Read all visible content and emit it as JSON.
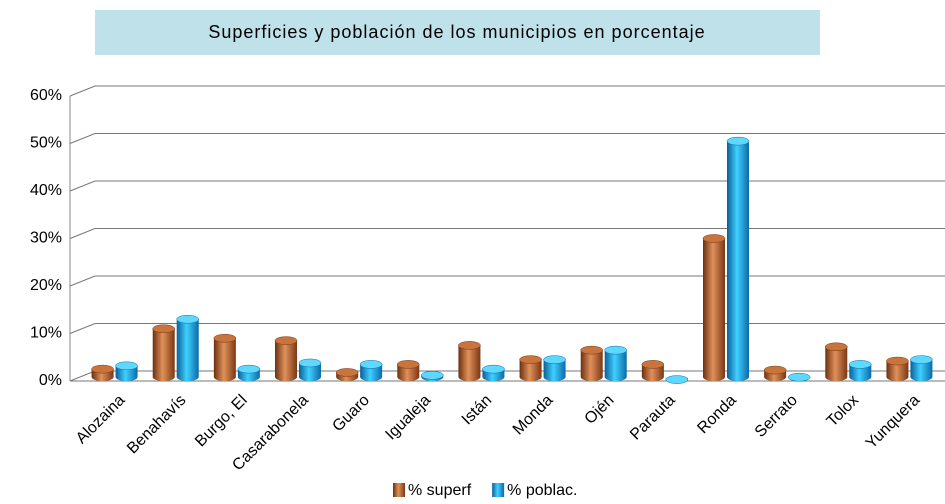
{
  "chart_data": {
    "type": "bar",
    "title": "Superficies y población de los municipios en porcentaje",
    "categories": [
      "Alozaina",
      "Benahavís",
      "Burgo, El",
      "Casarabonela",
      "Guaro",
      "Igualeja",
      "Istán",
      "Monda",
      "Ojén",
      "Parauta",
      "Ronda",
      "Serrato",
      "Tolox",
      "Yunquera"
    ],
    "series": [
      {
        "name": "% superf",
        "color": "#b5622e",
        "values": [
          2.5,
          11,
          9,
          8.5,
          1.8,
          3.5,
          7.5,
          4.5,
          6.5,
          3.5,
          30,
          2.3,
          7.2,
          4.2
        ]
      },
      {
        "name": "% poblac.",
        "color": "#1aa6e0",
        "values": [
          3.2,
          13,
          2.5,
          3.8,
          3.5,
          1.2,
          2.5,
          4.5,
          6.5,
          0.3,
          50.5,
          0.8,
          3.5,
          4.5
        ]
      }
    ],
    "ylim": [
      0,
      60
    ],
    "yticks": [
      {
        "value": 0,
        "label": "0%"
      },
      {
        "value": 10,
        "label": "10%"
      },
      {
        "value": 20,
        "label": "20%"
      },
      {
        "value": 30,
        "label": "30%"
      },
      {
        "value": 40,
        "label": "40%"
      },
      {
        "value": 50,
        "label": "50%"
      },
      {
        "value": 60,
        "label": "60%"
      }
    ],
    "grid": true,
    "legend": "bottom"
  }
}
